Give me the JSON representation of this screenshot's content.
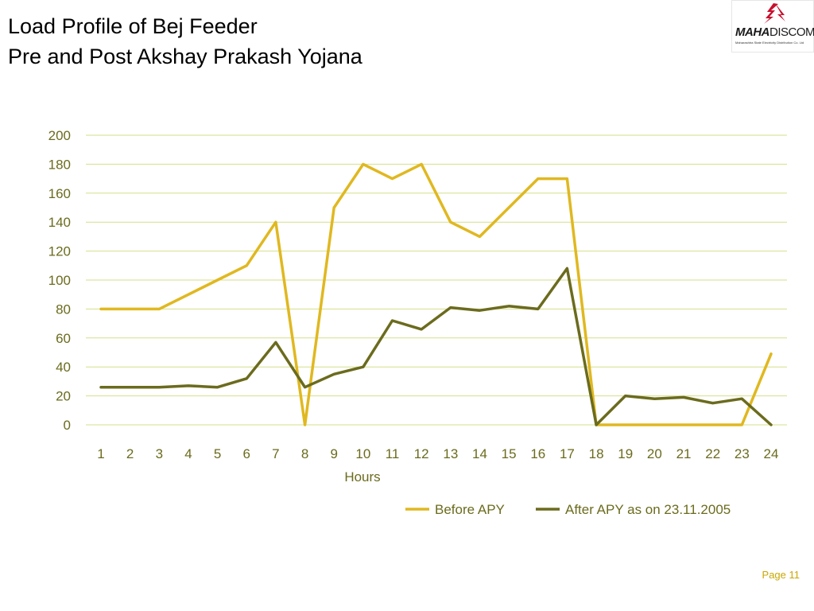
{
  "title": {
    "line1": "Load Profile of Bej Feeder",
    "line2": "Pre and Post Akshay Prakash Yojana"
  },
  "logo": {
    "brand_bold": "MAHA",
    "brand_rest": "DISCOM",
    "subtitle": "Maharashtra State Electricity Distribution Co. Ltd",
    "icon": "arrow-emblem-icon",
    "color": "#c8102e"
  },
  "page": {
    "label": "Page 11"
  },
  "chart_data": {
    "type": "line",
    "title": "",
    "xlabel": "Hours",
    "ylabel": "",
    "categories": [
      "1",
      "2",
      "3",
      "4",
      "5",
      "6",
      "7",
      "8",
      "9",
      "10",
      "11",
      "12",
      "13",
      "14",
      "15",
      "16",
      "17",
      "18",
      "19",
      "20",
      "21",
      "22",
      "23",
      "24"
    ],
    "ylim": [
      0,
      200
    ],
    "yticks": [
      0,
      20,
      40,
      60,
      80,
      100,
      120,
      140,
      160,
      180,
      200
    ],
    "grid": true,
    "legend": "bottom-right",
    "series": [
      {
        "name": "Before APY",
        "color": "#e0b820",
        "values": [
          80,
          80,
          80,
          90,
          100,
          110,
          140,
          0,
          150,
          180,
          170,
          180,
          140,
          130,
          150,
          170,
          170,
          0,
          0,
          0,
          0,
          0,
          0,
          49
        ]
      },
      {
        "name": "After APY as on 23.11.2005",
        "color": "#6b6b1e",
        "values": [
          26,
          26,
          26,
          27,
          26,
          32,
          57,
          26,
          35,
          40,
          72,
          66,
          81,
          79,
          82,
          80,
          108,
          0,
          20,
          18,
          19,
          15,
          18,
          0
        ]
      }
    ],
    "colors": {
      "grid": "#d4df8a",
      "axis_text": "#6b6b1e"
    }
  }
}
